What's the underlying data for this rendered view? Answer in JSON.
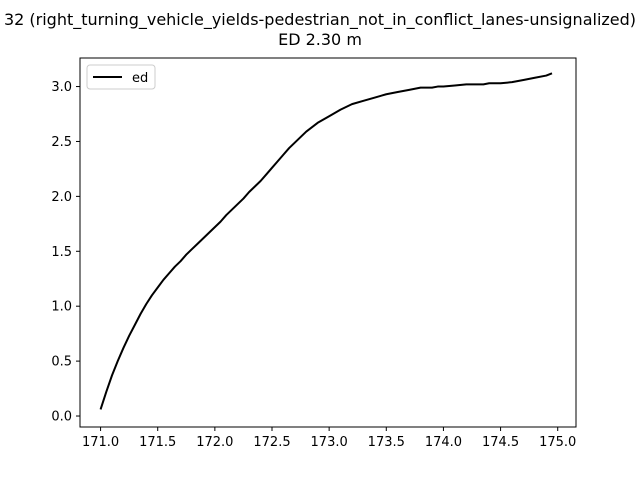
{
  "chart_data": {
    "type": "line",
    "title_line1": "32 (right_turning_vehicle_yields-pedestrian_not_in_conflict_lanes-unsignalized)",
    "title_line2": "ED 2.30 m",
    "xlabel": "",
    "ylabel": "",
    "xlim": [
      170.82,
      175.16
    ],
    "ylim": [
      -0.1,
      3.26
    ],
    "xticks": [
      171.0,
      171.5,
      172.0,
      172.5,
      173.0,
      173.5,
      174.0,
      174.5,
      175.0
    ],
    "xtick_labels": [
      "171.0",
      "171.5",
      "172.0",
      "172.5",
      "173.0",
      "173.5",
      "174.0",
      "174.5",
      "175.0"
    ],
    "yticks": [
      0.0,
      0.5,
      1.0,
      1.5,
      2.0,
      2.5,
      3.0
    ],
    "ytick_labels": [
      "0.0",
      "0.5",
      "1.0",
      "1.5",
      "2.0",
      "2.5",
      "3.0"
    ],
    "grid": false,
    "legend_position": "upper-left",
    "series": [
      {
        "name": "ed",
        "color": "#000000",
        "x": [
          171.0,
          171.05,
          171.1,
          171.15,
          171.2,
          171.25,
          171.3,
          171.35,
          171.4,
          171.45,
          171.5,
          171.55,
          171.6,
          171.65,
          171.7,
          171.75,
          171.8,
          171.85,
          171.9,
          171.95,
          172.0,
          172.05,
          172.1,
          172.15,
          172.2,
          172.25,
          172.3,
          172.35,
          172.4,
          172.45,
          172.5,
          172.55,
          172.6,
          172.65,
          172.7,
          172.75,
          172.8,
          172.85,
          172.9,
          172.95,
          173.0,
          173.1,
          173.2,
          173.3,
          173.4,
          173.5,
          173.6,
          173.7,
          173.8,
          173.85,
          173.9,
          173.95,
          174.0,
          174.1,
          174.2,
          174.3,
          174.35,
          174.4,
          174.5,
          174.6,
          174.7,
          174.8,
          174.9,
          174.95
        ],
        "values": [
          0.06,
          0.22,
          0.37,
          0.5,
          0.62,
          0.73,
          0.83,
          0.93,
          1.02,
          1.1,
          1.17,
          1.24,
          1.3,
          1.36,
          1.41,
          1.47,
          1.52,
          1.57,
          1.62,
          1.67,
          1.72,
          1.77,
          1.83,
          1.88,
          1.93,
          1.98,
          2.04,
          2.09,
          2.14,
          2.2,
          2.26,
          2.32,
          2.38,
          2.44,
          2.49,
          2.54,
          2.59,
          2.63,
          2.67,
          2.7,
          2.73,
          2.79,
          2.84,
          2.87,
          2.9,
          2.93,
          2.95,
          2.97,
          2.99,
          2.99,
          2.99,
          3.0,
          3.0,
          3.01,
          3.02,
          3.02,
          3.02,
          3.03,
          3.03,
          3.04,
          3.06,
          3.08,
          3.1,
          3.12
        ]
      }
    ]
  }
}
